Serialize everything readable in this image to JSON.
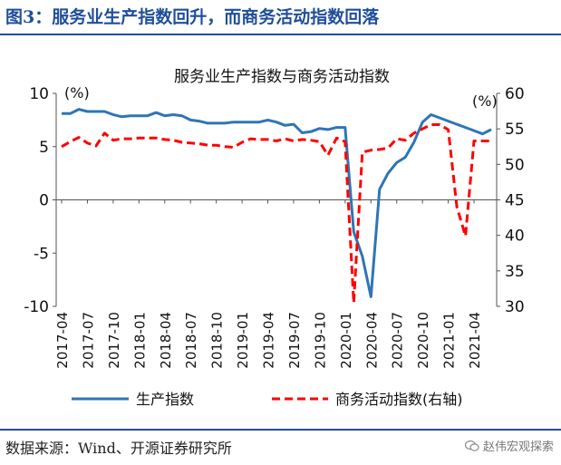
{
  "figure": {
    "title": "图3：服务业生产指数回升，而商务活动指数回落",
    "source": "数据来源：Wind、开源证券研究所",
    "watermark": "赵伟宏观探索",
    "watermark_icon": "wechat-icon"
  },
  "colors": {
    "title": "#1f4e9a",
    "production": "#2e75b6",
    "business": "#ff0000"
  },
  "chart_data": {
    "type": "line",
    "title": "服务业生产指数与商务活动指数",
    "left_axis": {
      "unit_label": "(%)",
      "range": [
        -10,
        10
      ],
      "ticks": [
        10,
        5,
        0,
        -5,
        -10
      ]
    },
    "right_axis": {
      "unit_label": "(%)",
      "range": [
        30,
        60
      ],
      "ticks": [
        60,
        55,
        50,
        45,
        40,
        35,
        30
      ]
    },
    "x_ticks": [
      "2017-04",
      "2017-07",
      "2017-10",
      "2018-01",
      "2018-04",
      "2018-07",
      "2018-10",
      "2019-01",
      "2019-04",
      "2019-07",
      "2019-10",
      "2020-01",
      "2020-04",
      "2020-07",
      "2020-10",
      "2021-01",
      "2021-04"
    ],
    "x": [
      "2017-04",
      "2017-05",
      "2017-06",
      "2017-07",
      "2017-08",
      "2017-09",
      "2017-10",
      "2017-11",
      "2017-12",
      "2018-01",
      "2018-02",
      "2018-03",
      "2018-04",
      "2018-05",
      "2018-06",
      "2018-07",
      "2018-08",
      "2018-09",
      "2018-10",
      "2018-11",
      "2018-12",
      "2019-01",
      "2019-02",
      "2019-03",
      "2019-04",
      "2019-05",
      "2019-06",
      "2019-07",
      "2019-08",
      "2019-09",
      "2019-10",
      "2019-11",
      "2019-12",
      "2020-01",
      "2020-02",
      "2020-03",
      "2020-04",
      "2020-05",
      "2020-06",
      "2020-07",
      "2020-08",
      "2020-09",
      "2020-10",
      "2020-11",
      "2020-12",
      "2021-01",
      "2021-02",
      "2021-03",
      "2021-04",
      "2021-05",
      "2021-06"
    ],
    "series": [
      {
        "name": "生产指数",
        "axis": "left",
        "style": "solid",
        "values": [
          8.1,
          8.1,
          8.5,
          8.3,
          8.3,
          8.3,
          8.0,
          7.8,
          7.9,
          7.9,
          7.9,
          8.2,
          7.9,
          8.0,
          7.9,
          7.5,
          7.4,
          7.2,
          7.2,
          7.2,
          7.3,
          7.3,
          7.3,
          7.3,
          7.5,
          7.3,
          7.0,
          7.1,
          6.3,
          6.4,
          6.7,
          6.6,
          6.8,
          6.8,
          -3.0,
          -5.3,
          -9.1,
          1.0,
          2.5,
          3.5,
          4.0,
          5.4,
          7.3,
          8.0,
          7.7,
          7.4,
          7.1,
          6.8,
          6.5,
          6.2,
          6.6
        ]
      },
      {
        "name": "商务活动指数(右轴)",
        "axis": "right",
        "style": "dashed",
        "values": [
          52.5,
          53.2,
          53.8,
          53.0,
          52.6,
          54.4,
          53.4,
          53.6,
          53.6,
          53.7,
          53.7,
          53.7,
          53.5,
          53.4,
          53.1,
          53.0,
          52.9,
          52.7,
          52.7,
          52.5,
          52.4,
          53.1,
          53.6,
          53.5,
          53.5,
          53.3,
          53.6,
          53.3,
          53.5,
          53.4,
          53.2,
          51.3,
          53.7,
          53.2,
          30.5,
          51.7,
          52.0,
          52.1,
          52.3,
          53.6,
          53.4,
          54.4,
          55.0,
          55.6,
          55.6,
          54.9,
          44.0,
          39.9,
          53.3,
          53.3,
          53.3
        ]
      }
    ],
    "legend": [
      "生产指数",
      "商务活动指数(右轴)"
    ],
    "legend_position": "bottom"
  }
}
